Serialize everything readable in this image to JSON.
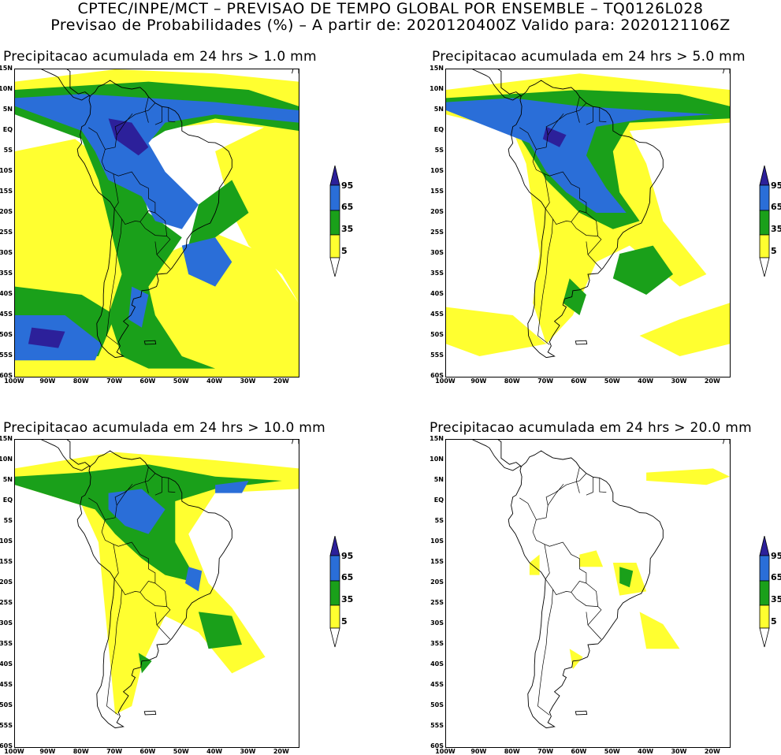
{
  "header": {
    "line1": "CPTEC/INPE/MCT – PREVISAO DE TEMPO GLOBAL POR ENSEMBLE – TQ0126L028",
    "line2": "Previsao de Probabilidades (%) –   A partir de: 2020120400Z  Valido para: 2020121106Z"
  },
  "axes": {
    "lat_labels": [
      "15N",
      "10N",
      "5N",
      "EQ",
      "5S",
      "10S",
      "15S",
      "20S",
      "25S",
      "30S",
      "35S",
      "40S",
      "45S",
      "50S",
      "55S",
      "60S"
    ],
    "lon_labels": [
      "100W",
      "90W",
      "80W",
      "70W",
      "60W",
      "50W",
      "40W",
      "30W",
      "20W"
    ],
    "lat_range": [
      -60,
      15
    ],
    "lon_range": [
      -100,
      -15
    ]
  },
  "legend": {
    "labels": [
      "95",
      "65",
      "35",
      "5"
    ],
    "colors": {
      "c5": "#ffff30",
      "c35": "#1aa01a",
      "c65": "#2a6ed8",
      "c95": "#2c209a"
    }
  },
  "panels": [
    {
      "title": "Precipitacao acumulada em 24 hrs > 1.0 mm",
      "threshold": "1.0"
    },
    {
      "title": "Precipitacao acumulada em 24 hrs > 5.0 mm",
      "threshold": "5.0"
    },
    {
      "title": "Precipitacao acumulada em 24 hrs > 10.0 mm",
      "threshold": "10.0"
    },
    {
      "title": "Precipitacao acumulada em 24 hrs > 20.0 mm",
      "threshold": "20.0"
    }
  ]
}
